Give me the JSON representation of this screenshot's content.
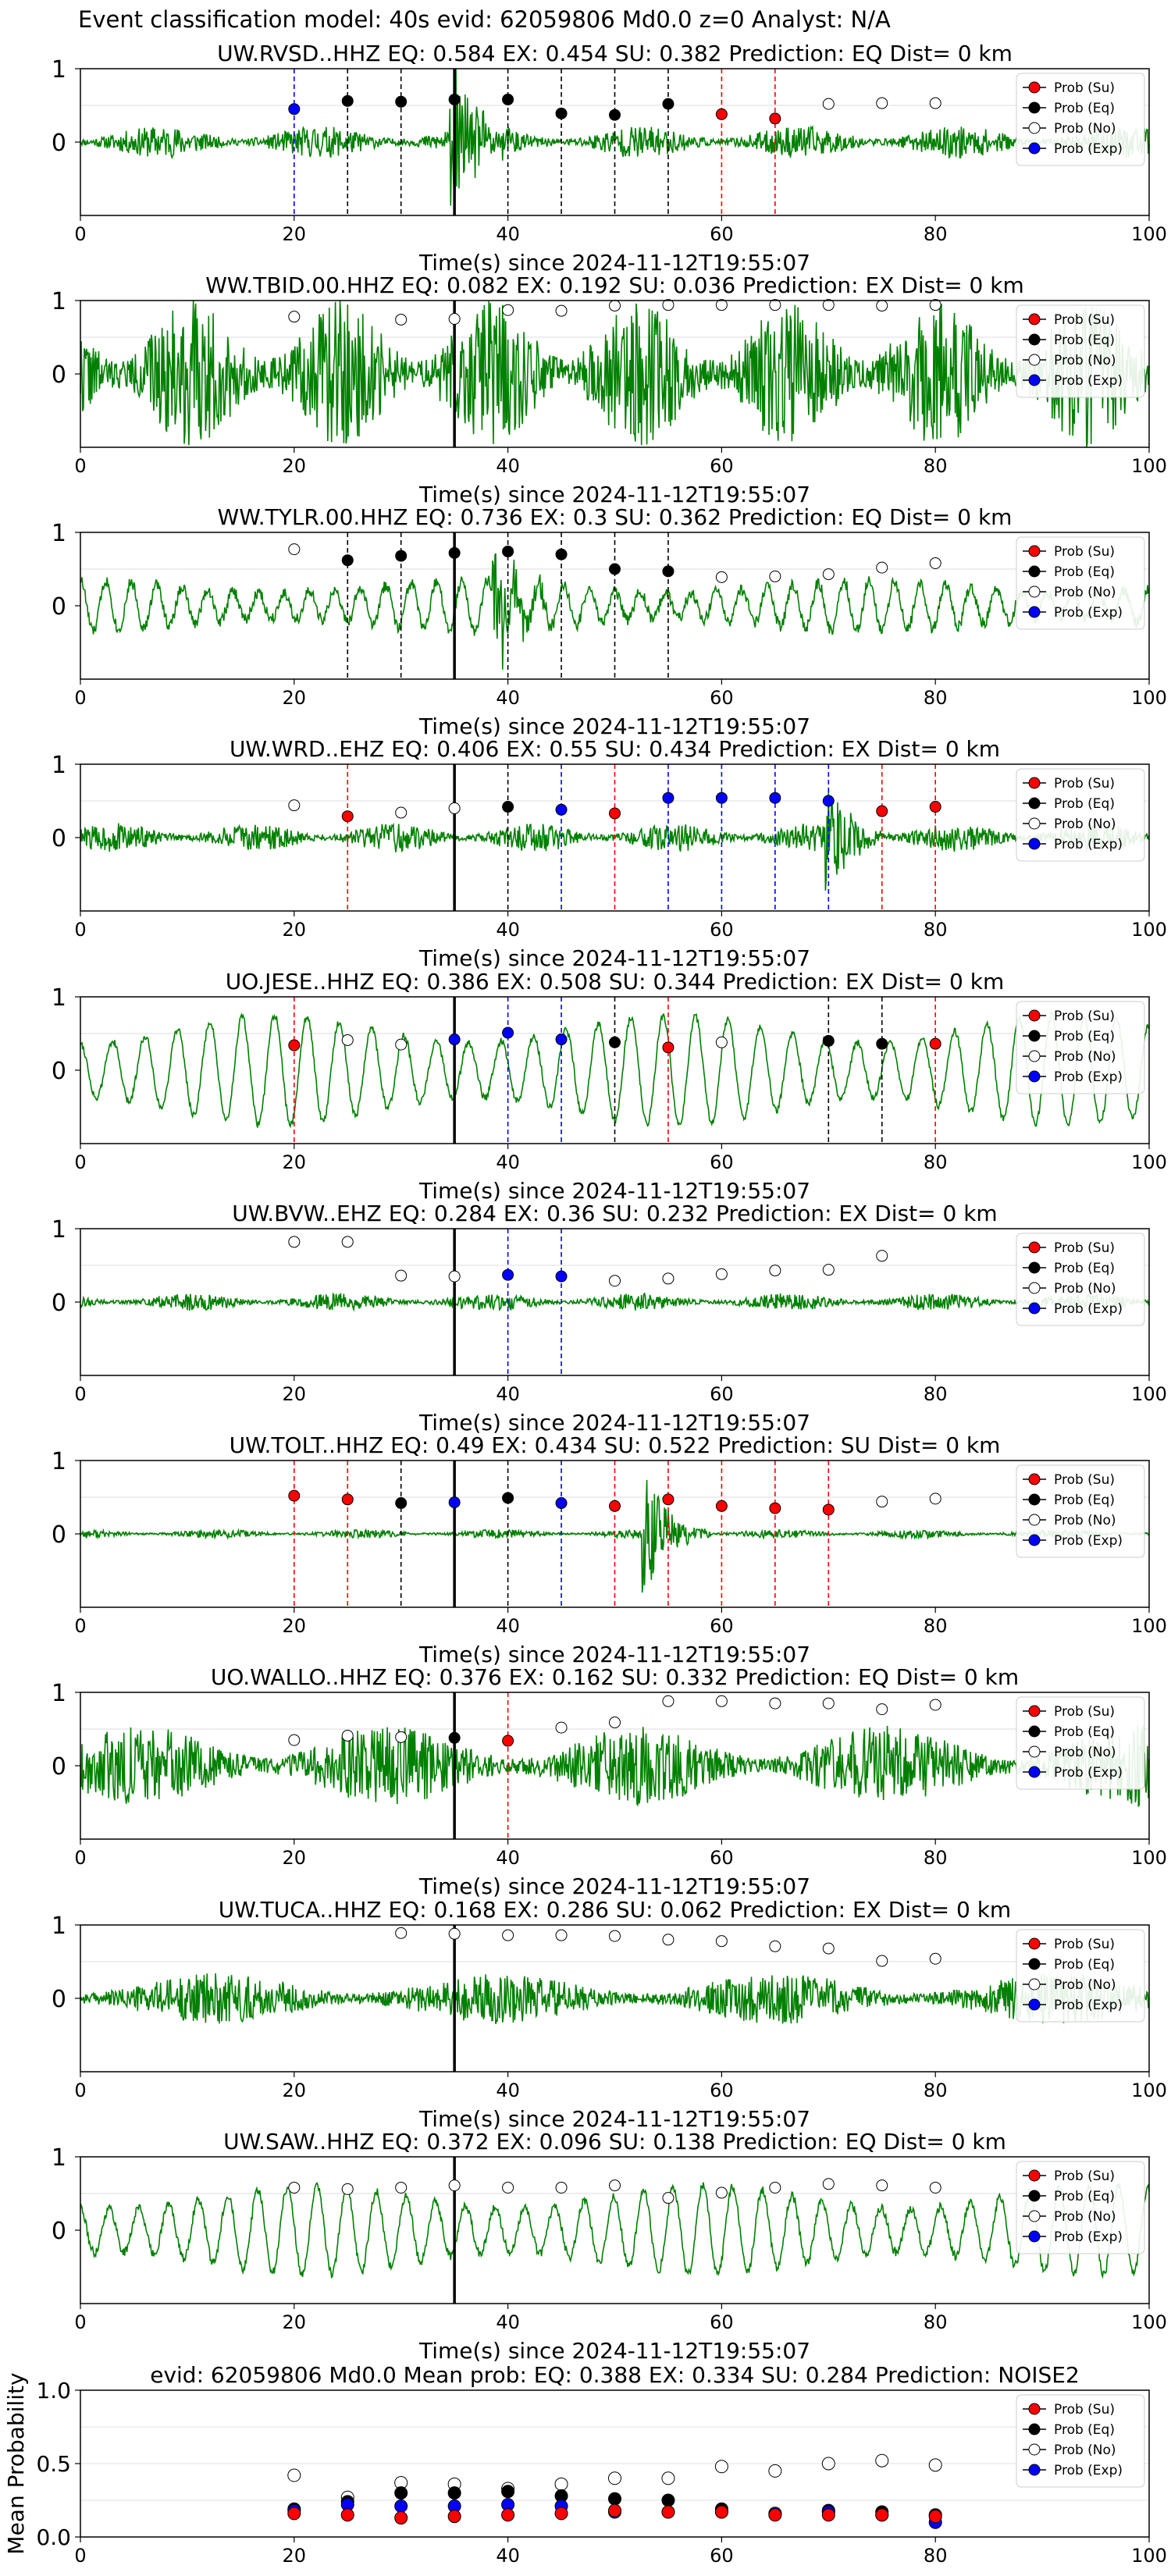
{
  "figure_title": "Event classification model: 40s evid: 62059806 Md0.0 z=0 Analyst: N/A",
  "legend_entries": [
    {
      "label": "Prob (Su)",
      "fill": "#ff0000",
      "stroke": "#000000"
    },
    {
      "label": "Prob (Eq)",
      "fill": "#000000",
      "stroke": "#000000"
    },
    {
      "label": "Prob (No)",
      "fill": "#ffffff",
      "stroke": "#000000"
    },
    {
      "label": "Prob (Exp)",
      "fill": "#0000ff",
      "stroke": "#000000"
    }
  ],
  "colors": {
    "trace": "#008000",
    "su": "#ff0000",
    "eq": "#000000",
    "no": "#ffffff",
    "exp": "#0000ff",
    "pick": "#000000"
  },
  "chart_data": [
    {
      "type": "line",
      "title": "UW.RVSD..HHZ   EQ: 0.584  EX: 0.454  SU: 0.382   Prediction: EQ    Dist= 0 km",
      "xlabel": "Time(s) since 2024-11-12T19:55:07",
      "xlim": [
        0,
        100
      ],
      "ylim": [
        -1,
        1
      ],
      "xticks": [
        "0",
        "20",
        "40",
        "60",
        "80",
        "100"
      ],
      "yticks": [
        "0",
        "1"
      ],
      "pick_time": 35,
      "waveform": {
        "kind": "burst",
        "amp": 0.22,
        "freq": 1.4,
        "burst_at": 35,
        "burst_amp": 1.0,
        "seed": 11
      },
      "windows": [
        {
          "t": 20,
          "cls": "exp",
          "p": 0.45
        },
        {
          "t": 25,
          "cls": "eq",
          "p": 0.56
        },
        {
          "t": 30,
          "cls": "eq",
          "p": 0.55
        },
        {
          "t": 35,
          "cls": "eq",
          "p": 0.58
        },
        {
          "t": 40,
          "cls": "eq",
          "p": 0.58
        },
        {
          "t": 45,
          "cls": "eq",
          "p": 0.39
        },
        {
          "t": 50,
          "cls": "eq",
          "p": 0.37
        },
        {
          "t": 55,
          "cls": "eq",
          "p": 0.52
        },
        {
          "t": 60,
          "cls": "su",
          "p": 0.38
        },
        {
          "t": 65,
          "cls": "su",
          "p": 0.32
        },
        {
          "t": 70,
          "cls": "no",
          "p": 0.52
        },
        {
          "t": 75,
          "cls": "no",
          "p": 0.53
        },
        {
          "t": 80,
          "cls": "no",
          "p": 0.53
        }
      ]
    },
    {
      "type": "line",
      "title": "WW.TBID.00.HHZ   EQ: 0.082  EX: 0.192  SU: 0.036   Prediction: EX    Dist= 0 km",
      "xlabel": "Time(s) since 2024-11-12T19:55:07",
      "xlim": [
        0,
        100
      ],
      "ylim": [
        -1,
        1
      ],
      "xticks": [
        "0",
        "20",
        "40",
        "60",
        "80",
        "100"
      ],
      "yticks": [
        "0",
        "1"
      ],
      "pick_time": 35,
      "waveform": {
        "kind": "noise",
        "amp": 1.0,
        "freq": 1.5,
        "seed": 22
      },
      "windows": [
        {
          "t": 20,
          "cls": "no",
          "p": 0.78
        },
        {
          "t": 30,
          "cls": "no",
          "p": 0.74
        },
        {
          "t": 35,
          "cls": "no",
          "p": 0.75
        },
        {
          "t": 40,
          "cls": "no",
          "p": 0.87
        },
        {
          "t": 45,
          "cls": "no",
          "p": 0.86
        },
        {
          "t": 50,
          "cls": "no",
          "p": 0.93
        },
        {
          "t": 55,
          "cls": "no",
          "p": 0.94
        },
        {
          "t": 60,
          "cls": "no",
          "p": 0.94
        },
        {
          "t": 65,
          "cls": "no",
          "p": 0.94
        },
        {
          "t": 70,
          "cls": "no",
          "p": 0.94
        },
        {
          "t": 75,
          "cls": "no",
          "p": 0.93
        },
        {
          "t": 80,
          "cls": "no",
          "p": 0.94
        }
      ]
    },
    {
      "type": "line",
      "title": "WW.TYLR.00.HHZ   EQ: 0.736  EX: 0.3  SU: 0.362   Prediction: EQ    Dist= 0 km",
      "xlabel": "Time(s) since 2024-11-12T19:55:07",
      "xlim": [
        0,
        100
      ],
      "ylim": [
        -1,
        1
      ],
      "xticks": [
        "0",
        "20",
        "40",
        "60",
        "80",
        "100"
      ],
      "yticks": [
        "0",
        "1"
      ],
      "pick_time": 35,
      "waveform": {
        "kind": "wave",
        "amp": 0.35,
        "freq": 0.42,
        "noise": 0.08,
        "burst_at": 39,
        "burst_amp": 0.9,
        "seed": 33
      },
      "windows": [
        {
          "t": 20,
          "cls": "no",
          "p": 0.77
        },
        {
          "t": 25,
          "cls": "eq",
          "p": 0.62
        },
        {
          "t": 30,
          "cls": "eq",
          "p": 0.68
        },
        {
          "t": 35,
          "cls": "eq",
          "p": 0.72
        },
        {
          "t": 40,
          "cls": "eq",
          "p": 0.74
        },
        {
          "t": 45,
          "cls": "eq",
          "p": 0.7
        },
        {
          "t": 50,
          "cls": "eq",
          "p": 0.5
        },
        {
          "t": 55,
          "cls": "eq",
          "p": 0.47
        },
        {
          "t": 60,
          "cls": "no",
          "p": 0.39
        },
        {
          "t": 65,
          "cls": "no",
          "p": 0.4
        },
        {
          "t": 70,
          "cls": "no",
          "p": 0.43
        },
        {
          "t": 75,
          "cls": "no",
          "p": 0.52
        },
        {
          "t": 80,
          "cls": "no",
          "p": 0.58
        }
      ]
    },
    {
      "type": "line",
      "title": "UW.WRD..EHZ   EQ: 0.406  EX: 0.55  SU: 0.434   Prediction: EX    Dist= 0 km",
      "xlabel": "Time(s) since 2024-11-12T19:55:07",
      "xlim": [
        0,
        100
      ],
      "ylim": [
        -1,
        1
      ],
      "xticks": [
        "0",
        "20",
        "40",
        "60",
        "80",
        "100"
      ],
      "yticks": [
        "0",
        "1"
      ],
      "pick_time": 35,
      "waveform": {
        "kind": "burst",
        "amp": 0.2,
        "freq": 1.6,
        "burst_at": 70,
        "burst_amp": 0.8,
        "seed": 44
      },
      "windows": [
        {
          "t": 20,
          "cls": "no",
          "p": 0.44
        },
        {
          "t": 25,
          "cls": "su",
          "p": 0.29
        },
        {
          "t": 30,
          "cls": "no",
          "p": 0.34
        },
        {
          "t": 35,
          "cls": "no",
          "p": 0.4
        },
        {
          "t": 40,
          "cls": "eq",
          "p": 0.42
        },
        {
          "t": 45,
          "cls": "exp",
          "p": 0.38
        },
        {
          "t": 50,
          "cls": "su",
          "p": 0.33
        },
        {
          "t": 55,
          "cls": "exp",
          "p": 0.54
        },
        {
          "t": 60,
          "cls": "exp",
          "p": 0.54
        },
        {
          "t": 65,
          "cls": "exp",
          "p": 0.54
        },
        {
          "t": 70,
          "cls": "exp",
          "p": 0.5
        },
        {
          "t": 75,
          "cls": "su",
          "p": 0.36
        },
        {
          "t": 80,
          "cls": "su",
          "p": 0.42
        }
      ]
    },
    {
      "type": "line",
      "title": "UO.JESE..HHZ   EQ: 0.386  EX: 0.508  SU: 0.344   Prediction: EX    Dist= 0 km",
      "xlabel": "Time(s) since 2024-11-12T19:55:07",
      "xlim": [
        0,
        100
      ],
      "ylim": [
        -1,
        1
      ],
      "xticks": [
        "0",
        "20",
        "40",
        "60",
        "80",
        "100"
      ],
      "yticks": [
        "0",
        "1"
      ],
      "pick_time": 35,
      "waveform": {
        "kind": "wave",
        "amp": 0.75,
        "freq": 0.33,
        "noise": 0.05,
        "seed": 55
      },
      "windows": [
        {
          "t": 20,
          "cls": "su",
          "p": 0.34
        },
        {
          "t": 25,
          "cls": "no",
          "p": 0.41
        },
        {
          "t": 30,
          "cls": "no",
          "p": 0.35
        },
        {
          "t": 35,
          "cls": "exp",
          "p": 0.42
        },
        {
          "t": 40,
          "cls": "exp",
          "p": 0.51
        },
        {
          "t": 45,
          "cls": "exp",
          "p": 0.42
        },
        {
          "t": 50,
          "cls": "eq",
          "p": 0.38
        },
        {
          "t": 55,
          "cls": "su",
          "p": 0.31
        },
        {
          "t": 60,
          "cls": "no",
          "p": 0.38
        },
        {
          "t": 70,
          "cls": "eq",
          "p": 0.4
        },
        {
          "t": 75,
          "cls": "eq",
          "p": 0.36
        },
        {
          "t": 80,
          "cls": "su",
          "p": 0.36
        }
      ]
    },
    {
      "type": "line",
      "title": "UW.BVW..EHZ   EQ: 0.284  EX: 0.36  SU: 0.232   Prediction: EX    Dist= 0 km",
      "xlabel": "Time(s) since 2024-11-12T19:55:07",
      "xlim": [
        0,
        100
      ],
      "ylim": [
        -1,
        1
      ],
      "xticks": [
        "0",
        "20",
        "40",
        "60",
        "80",
        "100"
      ],
      "yticks": [
        "0",
        "1"
      ],
      "pick_time": 35,
      "waveform": {
        "kind": "noise",
        "amp": 0.12,
        "freq": 1.5,
        "seed": 66
      },
      "windows": [
        {
          "t": 20,
          "cls": "no",
          "p": 0.82
        },
        {
          "t": 25,
          "cls": "no",
          "p": 0.82
        },
        {
          "t": 30,
          "cls": "no",
          "p": 0.36
        },
        {
          "t": 35,
          "cls": "no",
          "p": 0.35
        },
        {
          "t": 40,
          "cls": "exp",
          "p": 0.37
        },
        {
          "t": 45,
          "cls": "exp",
          "p": 0.35
        },
        {
          "t": 50,
          "cls": "no",
          "p": 0.29
        },
        {
          "t": 55,
          "cls": "no",
          "p": 0.32
        },
        {
          "t": 60,
          "cls": "no",
          "p": 0.38
        },
        {
          "t": 65,
          "cls": "no",
          "p": 0.43
        },
        {
          "t": 70,
          "cls": "no",
          "p": 0.44
        },
        {
          "t": 75,
          "cls": "no",
          "p": 0.63
        }
      ]
    },
    {
      "type": "line",
      "title": "UW.TOLT..HHZ   EQ: 0.49  EX: 0.434  SU: 0.522   Prediction: SU    Dist= 0 km",
      "xlabel": "Time(s) since 2024-11-12T19:55:07",
      "xlim": [
        0,
        100
      ],
      "ylim": [
        -1,
        1
      ],
      "xticks": [
        "0",
        "20",
        "40",
        "60",
        "80",
        "100"
      ],
      "yticks": [
        "0",
        "1"
      ],
      "pick_time": 35,
      "waveform": {
        "kind": "burst",
        "amp": 0.06,
        "freq": 1.6,
        "burst_at": 53,
        "burst_amp": 0.9,
        "seed": 77
      },
      "windows": [
        {
          "t": 20,
          "cls": "su",
          "p": 0.52
        },
        {
          "t": 25,
          "cls": "su",
          "p": 0.47
        },
        {
          "t": 30,
          "cls": "eq",
          "p": 0.42
        },
        {
          "t": 35,
          "cls": "exp",
          "p": 0.43
        },
        {
          "t": 40,
          "cls": "eq",
          "p": 0.49
        },
        {
          "t": 45,
          "cls": "exp",
          "p": 0.42
        },
        {
          "t": 50,
          "cls": "su",
          "p": 0.38
        },
        {
          "t": 55,
          "cls": "su",
          "p": 0.47
        },
        {
          "t": 60,
          "cls": "su",
          "p": 0.38
        },
        {
          "t": 65,
          "cls": "su",
          "p": 0.35
        },
        {
          "t": 70,
          "cls": "su",
          "p": 0.33
        },
        {
          "t": 75,
          "cls": "no",
          "p": 0.44
        },
        {
          "t": 80,
          "cls": "no",
          "p": 0.48
        }
      ]
    },
    {
      "type": "line",
      "title": "UO.WALLO..HHZ   EQ: 0.376  EX: 0.162  SU: 0.332   Prediction: EQ    Dist= 0 km",
      "xlabel": "Time(s) since 2024-11-12T19:55:07",
      "xlim": [
        0,
        100
      ],
      "ylim": [
        -1,
        1
      ],
      "xticks": [
        "0",
        "20",
        "40",
        "60",
        "80",
        "100"
      ],
      "yticks": [
        "0",
        "1"
      ],
      "pick_time": 35,
      "waveform": {
        "kind": "noise",
        "amp": 0.55,
        "freq": 0.9,
        "seed": 88
      },
      "windows": [
        {
          "t": 20,
          "cls": "no",
          "p": 0.35
        },
        {
          "t": 25,
          "cls": "no",
          "p": 0.41
        },
        {
          "t": 30,
          "cls": "no",
          "p": 0.39
        },
        {
          "t": 35,
          "cls": "eq",
          "p": 0.38
        },
        {
          "t": 40,
          "cls": "su",
          "p": 0.34
        },
        {
          "t": 45,
          "cls": "no",
          "p": 0.52
        },
        {
          "t": 50,
          "cls": "no",
          "p": 0.59
        },
        {
          "t": 55,
          "cls": "no",
          "p": 0.88
        },
        {
          "t": 60,
          "cls": "no",
          "p": 0.88
        },
        {
          "t": 65,
          "cls": "no",
          "p": 0.85
        },
        {
          "t": 70,
          "cls": "no",
          "p": 0.85
        },
        {
          "t": 75,
          "cls": "no",
          "p": 0.77
        },
        {
          "t": 80,
          "cls": "no",
          "p": 0.83
        }
      ]
    },
    {
      "type": "line",
      "title": "UW.TUCA..HHZ   EQ: 0.168  EX: 0.286  SU: 0.062   Prediction: EX    Dist= 0 km",
      "xlabel": "Time(s) since 2024-11-12T19:55:07",
      "xlim": [
        0,
        100
      ],
      "ylim": [
        -1,
        1
      ],
      "xticks": [
        "0",
        "20",
        "40",
        "60",
        "80",
        "100"
      ],
      "yticks": [
        "0",
        "1"
      ],
      "pick_time": 35,
      "waveform": {
        "kind": "noise",
        "amp": 0.35,
        "freq": 0.8,
        "seed": 99
      },
      "windows": [
        {
          "t": 30,
          "cls": "no",
          "p": 0.89
        },
        {
          "t": 35,
          "cls": "no",
          "p": 0.88
        },
        {
          "t": 40,
          "cls": "no",
          "p": 0.86
        },
        {
          "t": 45,
          "cls": "no",
          "p": 0.86
        },
        {
          "t": 50,
          "cls": "no",
          "p": 0.85
        },
        {
          "t": 55,
          "cls": "no",
          "p": 0.8
        },
        {
          "t": 60,
          "cls": "no",
          "p": 0.78
        },
        {
          "t": 65,
          "cls": "no",
          "p": 0.71
        },
        {
          "t": 70,
          "cls": "no",
          "p": 0.68
        },
        {
          "t": 75,
          "cls": "no",
          "p": 0.51
        },
        {
          "t": 80,
          "cls": "no",
          "p": 0.54
        }
      ]
    },
    {
      "type": "line",
      "title": "UW.SAW..HHZ   EQ: 0.372  EX: 0.096  SU: 0.138   Prediction: EQ    Dist= 0 km",
      "xlabel": "Time(s) since 2024-11-12T19:55:07",
      "xlim": [
        0,
        100
      ],
      "ylim": [
        -1,
        1
      ],
      "xticks": [
        "0",
        "20",
        "40",
        "60",
        "80",
        "100"
      ],
      "yticks": [
        "0",
        "1"
      ],
      "pick_time": 35,
      "waveform": {
        "kind": "wave",
        "amp": 0.6,
        "freq": 0.36,
        "noise": 0.06,
        "seed": 111
      },
      "windows": [
        {
          "t": 20,
          "cls": "no",
          "p": 0.58
        },
        {
          "t": 25,
          "cls": "no",
          "p": 0.56
        },
        {
          "t": 30,
          "cls": "no",
          "p": 0.58
        },
        {
          "t": 35,
          "cls": "no",
          "p": 0.61
        },
        {
          "t": 40,
          "cls": "no",
          "p": 0.58
        },
        {
          "t": 45,
          "cls": "no",
          "p": 0.58
        },
        {
          "t": 50,
          "cls": "no",
          "p": 0.61
        },
        {
          "t": 55,
          "cls": "no",
          "p": 0.44
        },
        {
          "t": 60,
          "cls": "no",
          "p": 0.51
        },
        {
          "t": 65,
          "cls": "no",
          "p": 0.58
        },
        {
          "t": 70,
          "cls": "no",
          "p": 0.63
        },
        {
          "t": 75,
          "cls": "no",
          "p": 0.61
        },
        {
          "t": 80,
          "cls": "no",
          "p": 0.58
        }
      ]
    },
    {
      "type": "scatter",
      "title": "evid: 62059806  Md0.0   Mean prob:   EQ: 0.388  EX: 0.334  SU: 0.284   Prediction: NOISE2",
      "xlabel": "",
      "ylabel": "Mean Probability",
      "xlim": [
        0,
        100
      ],
      "ylim": [
        0,
        1
      ],
      "xticks": [
        "0",
        "20",
        "40",
        "60",
        "80",
        "100"
      ],
      "yticks": [
        "0.0",
        "0.5",
        "1.0"
      ],
      "x": [
        20,
        25,
        30,
        35,
        40,
        45,
        50,
        55,
        60,
        65,
        70,
        75,
        80
      ],
      "series": [
        {
          "name": "Prob (No)",
          "cls": "no",
          "values": [
            0.42,
            0.27,
            0.37,
            0.36,
            0.33,
            0.36,
            0.4,
            0.4,
            0.48,
            0.45,
            0.5,
            0.52,
            0.49
          ]
        },
        {
          "name": "Prob (Eq)",
          "cls": "eq",
          "values": [
            0.19,
            0.24,
            0.3,
            0.3,
            0.31,
            0.28,
            0.26,
            0.25,
            0.19,
            0.16,
            0.18,
            0.17,
            0.15
          ]
        },
        {
          "name": "Prob (Exp)",
          "cls": "exp",
          "values": [
            0.18,
            0.22,
            0.21,
            0.21,
            0.22,
            0.21,
            0.17,
            0.17,
            0.17,
            0.16,
            0.17,
            0.15,
            0.1
          ]
        },
        {
          "name": "Prob (Su)",
          "cls": "su",
          "values": [
            0.16,
            0.15,
            0.13,
            0.14,
            0.15,
            0.16,
            0.18,
            0.17,
            0.17,
            0.15,
            0.15,
            0.15,
            0.14
          ]
        }
      ]
    }
  ]
}
